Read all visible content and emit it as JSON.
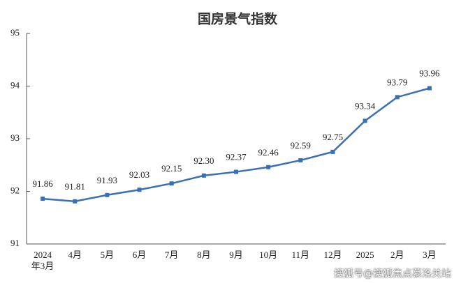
{
  "chart_data": {
    "type": "line",
    "title": "国房景气指数",
    "categories": [
      "2024\n年3月",
      "4月",
      "5月",
      "6月",
      "7月",
      "8月",
      "9月",
      "10月",
      "11月",
      "12月",
      "2025",
      "2月",
      "3月"
    ],
    "values": [
      91.86,
      91.81,
      91.93,
      92.03,
      92.15,
      92.3,
      92.37,
      92.46,
      92.59,
      92.75,
      93.34,
      93.79,
      93.96
    ],
    "value_labels": [
      "91.86",
      "91.81",
      "91.93",
      "92.03",
      "92.15",
      "92.30",
      "92.37",
      "92.46",
      "92.59",
      "92.75",
      "93.34",
      "93.79",
      "93.96"
    ],
    "color": "#3a70b3",
    "ylim": [
      91,
      95
    ],
    "yticks": [
      91,
      92,
      93,
      94,
      95
    ],
    "grid": false
  },
  "watermark": "搜狐号@搜狐焦点慕洛关站"
}
